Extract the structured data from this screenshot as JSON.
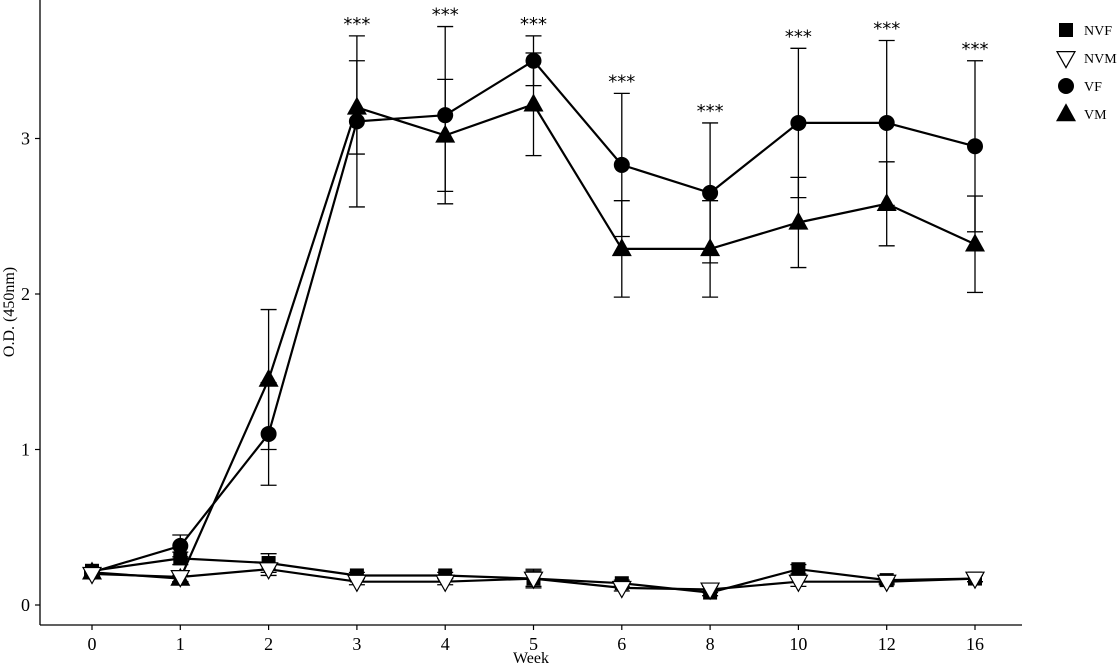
{
  "chart_data": {
    "type": "line",
    "xlabel": "Week",
    "ylabel": "O.D. (450nm)",
    "categories": [
      "0",
      "1",
      "2",
      "3",
      "4",
      "5",
      "6",
      "8",
      "10",
      "12",
      "16"
    ],
    "y_ticks": [
      "0",
      "1",
      "2",
      "3"
    ],
    "ylim": [
      0,
      3.83
    ],
    "grid": false,
    "legend_position": "top-right",
    "series": [
      {
        "name": "NVF",
        "marker": "square",
        "values": [
          0.22,
          0.3,
          0.27,
          0.19,
          0.19,
          0.17,
          0.14,
          0.08,
          0.23,
          0.16,
          0.17
        ],
        "error": [
          0.02,
          0.04,
          0.06,
          0.02,
          0.02,
          0.05,
          0.02,
          0.02,
          0.03,
          0.02,
          0.02
        ]
      },
      {
        "name": "NVM",
        "marker": "triangle-down-open",
        "values": [
          0.2,
          0.18,
          0.23,
          0.15,
          0.15,
          0.17,
          0.11,
          0.1,
          0.15,
          0.15,
          0.17
        ],
        "error": [
          0.02,
          0.03,
          0.04,
          0.02,
          0.02,
          0.06,
          0.02,
          0.02,
          0.03,
          0.02,
          0.02
        ]
      },
      {
        "name": "VF",
        "marker": "circle",
        "values": [
          0.21,
          0.38,
          1.1,
          3.11,
          3.15,
          3.5,
          2.83,
          2.65,
          3.1,
          3.1,
          2.95
        ],
        "error": [
          0.02,
          0.07,
          0.33,
          0.55,
          0.57,
          0.16,
          0.46,
          0.45,
          0.48,
          0.53,
          0.55
        ]
      },
      {
        "name": "VM",
        "marker": "triangle",
        "values": [
          0.21,
          0.17,
          1.45,
          3.2,
          3.02,
          3.22,
          2.29,
          2.29,
          2.46,
          2.58,
          2.32
        ],
        "error": [
          0.02,
          0.02,
          0.45,
          0.3,
          0.36,
          0.33,
          0.31,
          0.31,
          0.29,
          0.27,
          0.31
        ]
      }
    ],
    "significance_marks": [
      "",
      "",
      "",
      "***",
      "***",
      "***",
      "***",
      "***",
      "***",
      "***",
      "***"
    ]
  }
}
